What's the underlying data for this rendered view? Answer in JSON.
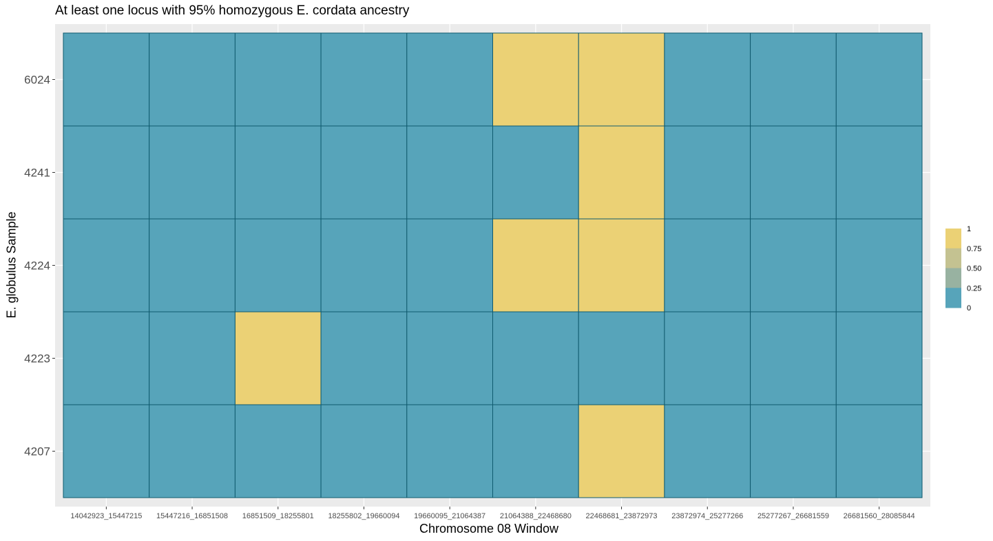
{
  "chart_data": {
    "type": "heatmap",
    "title": "At least one locus with 95% homozygous E. cordata ancestry",
    "xlabel": "Chromosome 08 Window",
    "ylabel": "E. globulus Sample",
    "x_categories": [
      "14042923_15447215",
      "15447216_16851508",
      "16851509_18255801",
      "18255802_19660094",
      "19660095_21064387",
      "21064388_22468680",
      "22468681_23872973",
      "23872974_25277266",
      "25277267_26681559",
      "26681560_28085844"
    ],
    "y_categories": [
      "6024",
      "4241",
      "4224",
      "4223",
      "4207"
    ],
    "values": [
      [
        0,
        0,
        0,
        0,
        0,
        1,
        1,
        0,
        0,
        0
      ],
      [
        0,
        0,
        0,
        0,
        0,
        0,
        1,
        0,
        0,
        0
      ],
      [
        0,
        0,
        0,
        0,
        0,
        1,
        1,
        0,
        0,
        0
      ],
      [
        0,
        0,
        1,
        0,
        0,
        0,
        0,
        0,
        0,
        0
      ],
      [
        0,
        0,
        0,
        0,
        0,
        0,
        1,
        0,
        0,
        0
      ]
    ],
    "color_low": "#57a4ba",
    "color_high": "#ebd175",
    "tile_border_color": "#0f5a6e",
    "panel_background": "#ebebeb",
    "grid": true,
    "legend": {
      "placement": "right",
      "breaks": [
        "1",
        "0.75",
        "0.50",
        "0.25",
        "0"
      ],
      "colors": [
        "#ebd175",
        "#c4c291",
        "#98b2a1",
        "#57a4ba",
        "#57a4ba"
      ]
    }
  }
}
